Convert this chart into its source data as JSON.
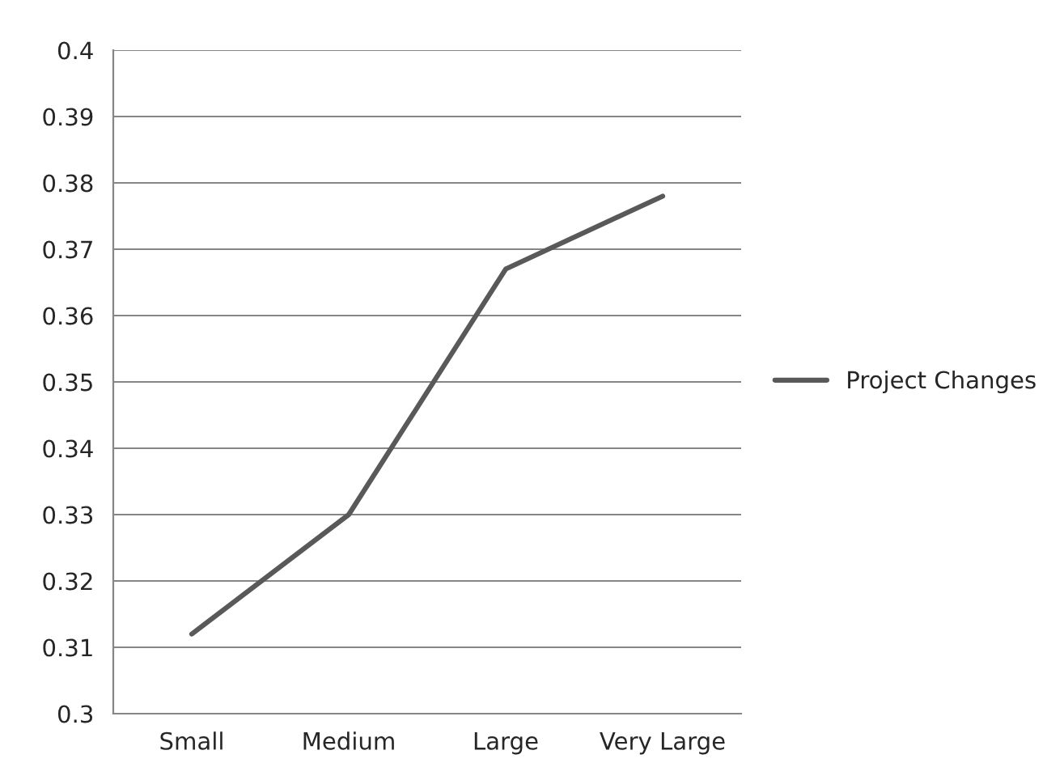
{
  "chart_data": {
    "type": "line",
    "categories": [
      "Small",
      "Medium",
      "Large",
      "Very Large"
    ],
    "series": [
      {
        "name": "Project Changes",
        "color": "#595959",
        "values": [
          0.312,
          0.33,
          0.367,
          0.378
        ]
      }
    ],
    "ylim": [
      0.3,
      0.4
    ],
    "yticks": [
      0.3,
      0.31,
      0.32,
      0.33,
      0.34,
      0.35,
      0.36,
      0.37,
      0.38,
      0.39,
      0.4
    ],
    "grid": "y",
    "legend": "right",
    "marker": "none",
    "line_style": "solid"
  }
}
